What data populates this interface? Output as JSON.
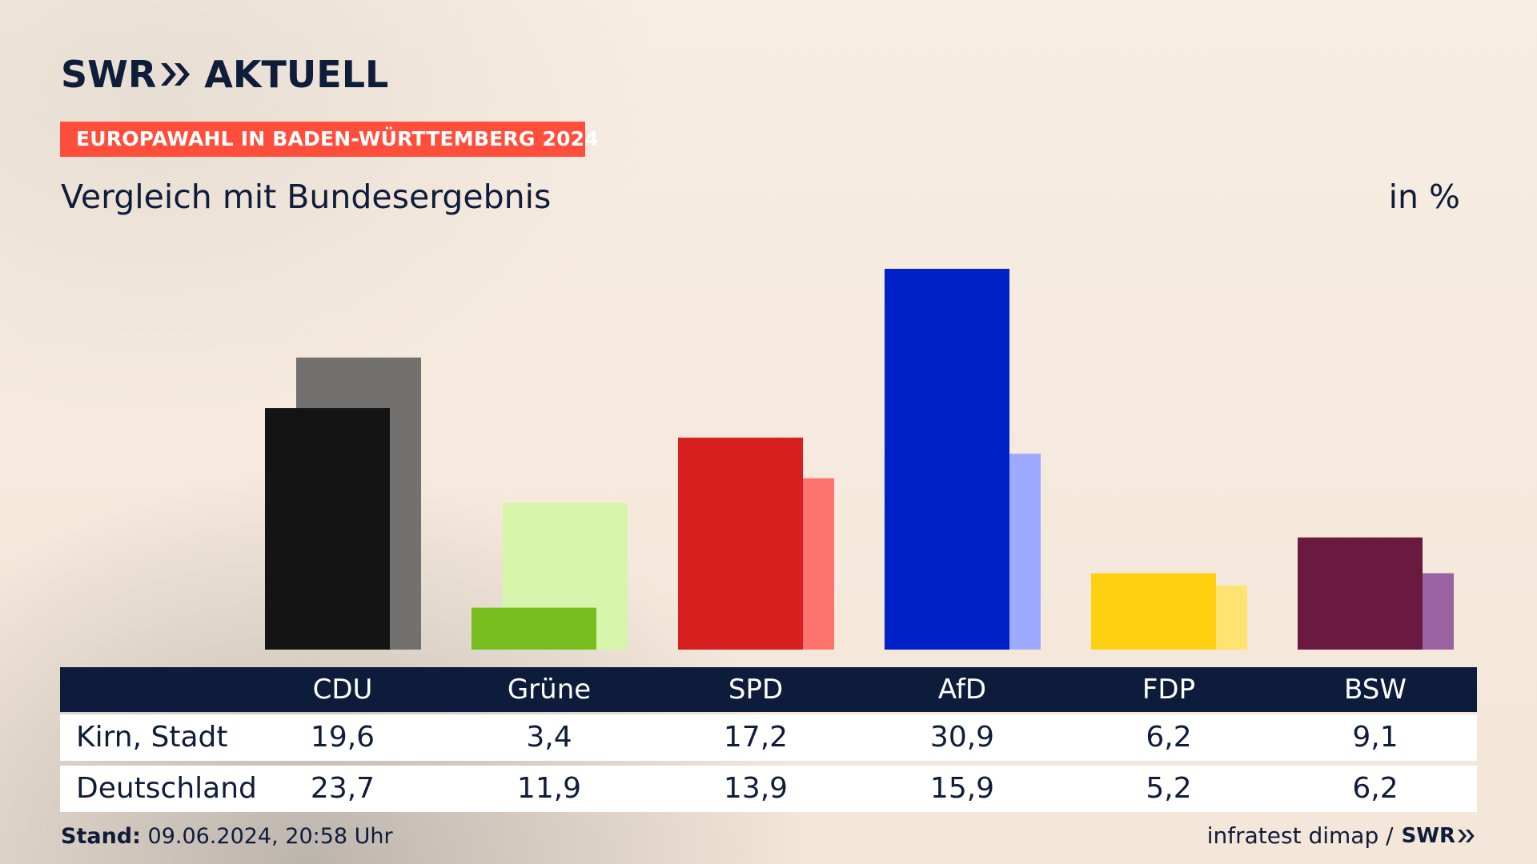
{
  "header": {
    "logo_prefix": "SWR",
    "logo_suffix": "AKTUELL",
    "tag": "EUROPAWAHL IN BADEN-WÜRTTEMBERG 2024",
    "subtitle": "Vergleich mit Bundesergebnis",
    "unit": "in %"
  },
  "chart_data": {
    "type": "bar",
    "title": "Vergleich mit Bundesergebnis",
    "ylabel": "in %",
    "ylim": [
      0,
      33
    ],
    "categories": [
      "CDU",
      "Grüne",
      "SPD",
      "AfD",
      "FDP",
      "BSW"
    ],
    "series": [
      {
        "name": "Kirn, Stadt",
        "values": [
          19.6,
          3.4,
          17.2,
          30.9,
          6.2,
          9.1
        ],
        "colors": [
          "#141414",
          "#78be1e",
          "#d71f1f",
          "#0021c8",
          "#ffd00f",
          "#6a1a3f"
        ]
      },
      {
        "name": "Deutschland",
        "values": [
          23.7,
          11.9,
          13.9,
          15.9,
          5.2,
          6.2
        ],
        "colors": [
          "#737170",
          "#d7f5aa",
          "#ff736d",
          "#9eaaff",
          "#ffe270",
          "#9a62a0"
        ]
      }
    ]
  },
  "table": {
    "headers": [
      "CDU",
      "Grüne",
      "SPD",
      "AfD",
      "FDP",
      "BSW"
    ],
    "rows": [
      {
        "label": "Kirn, Stadt",
        "values": [
          "19,6",
          "3,4",
          "17,2",
          "30,9",
          "6,2",
          "9,1"
        ]
      },
      {
        "label": "Deutschland",
        "values": [
          "23,7",
          "11,9",
          "13,9",
          "15,9",
          "5,2",
          "6,2"
        ]
      }
    ]
  },
  "footer": {
    "stand_label": "Stand:",
    "stand_value": "09.06.2024, 20:58 Uhr",
    "source": "infratest dimap /",
    "source_brand": "SWR"
  }
}
